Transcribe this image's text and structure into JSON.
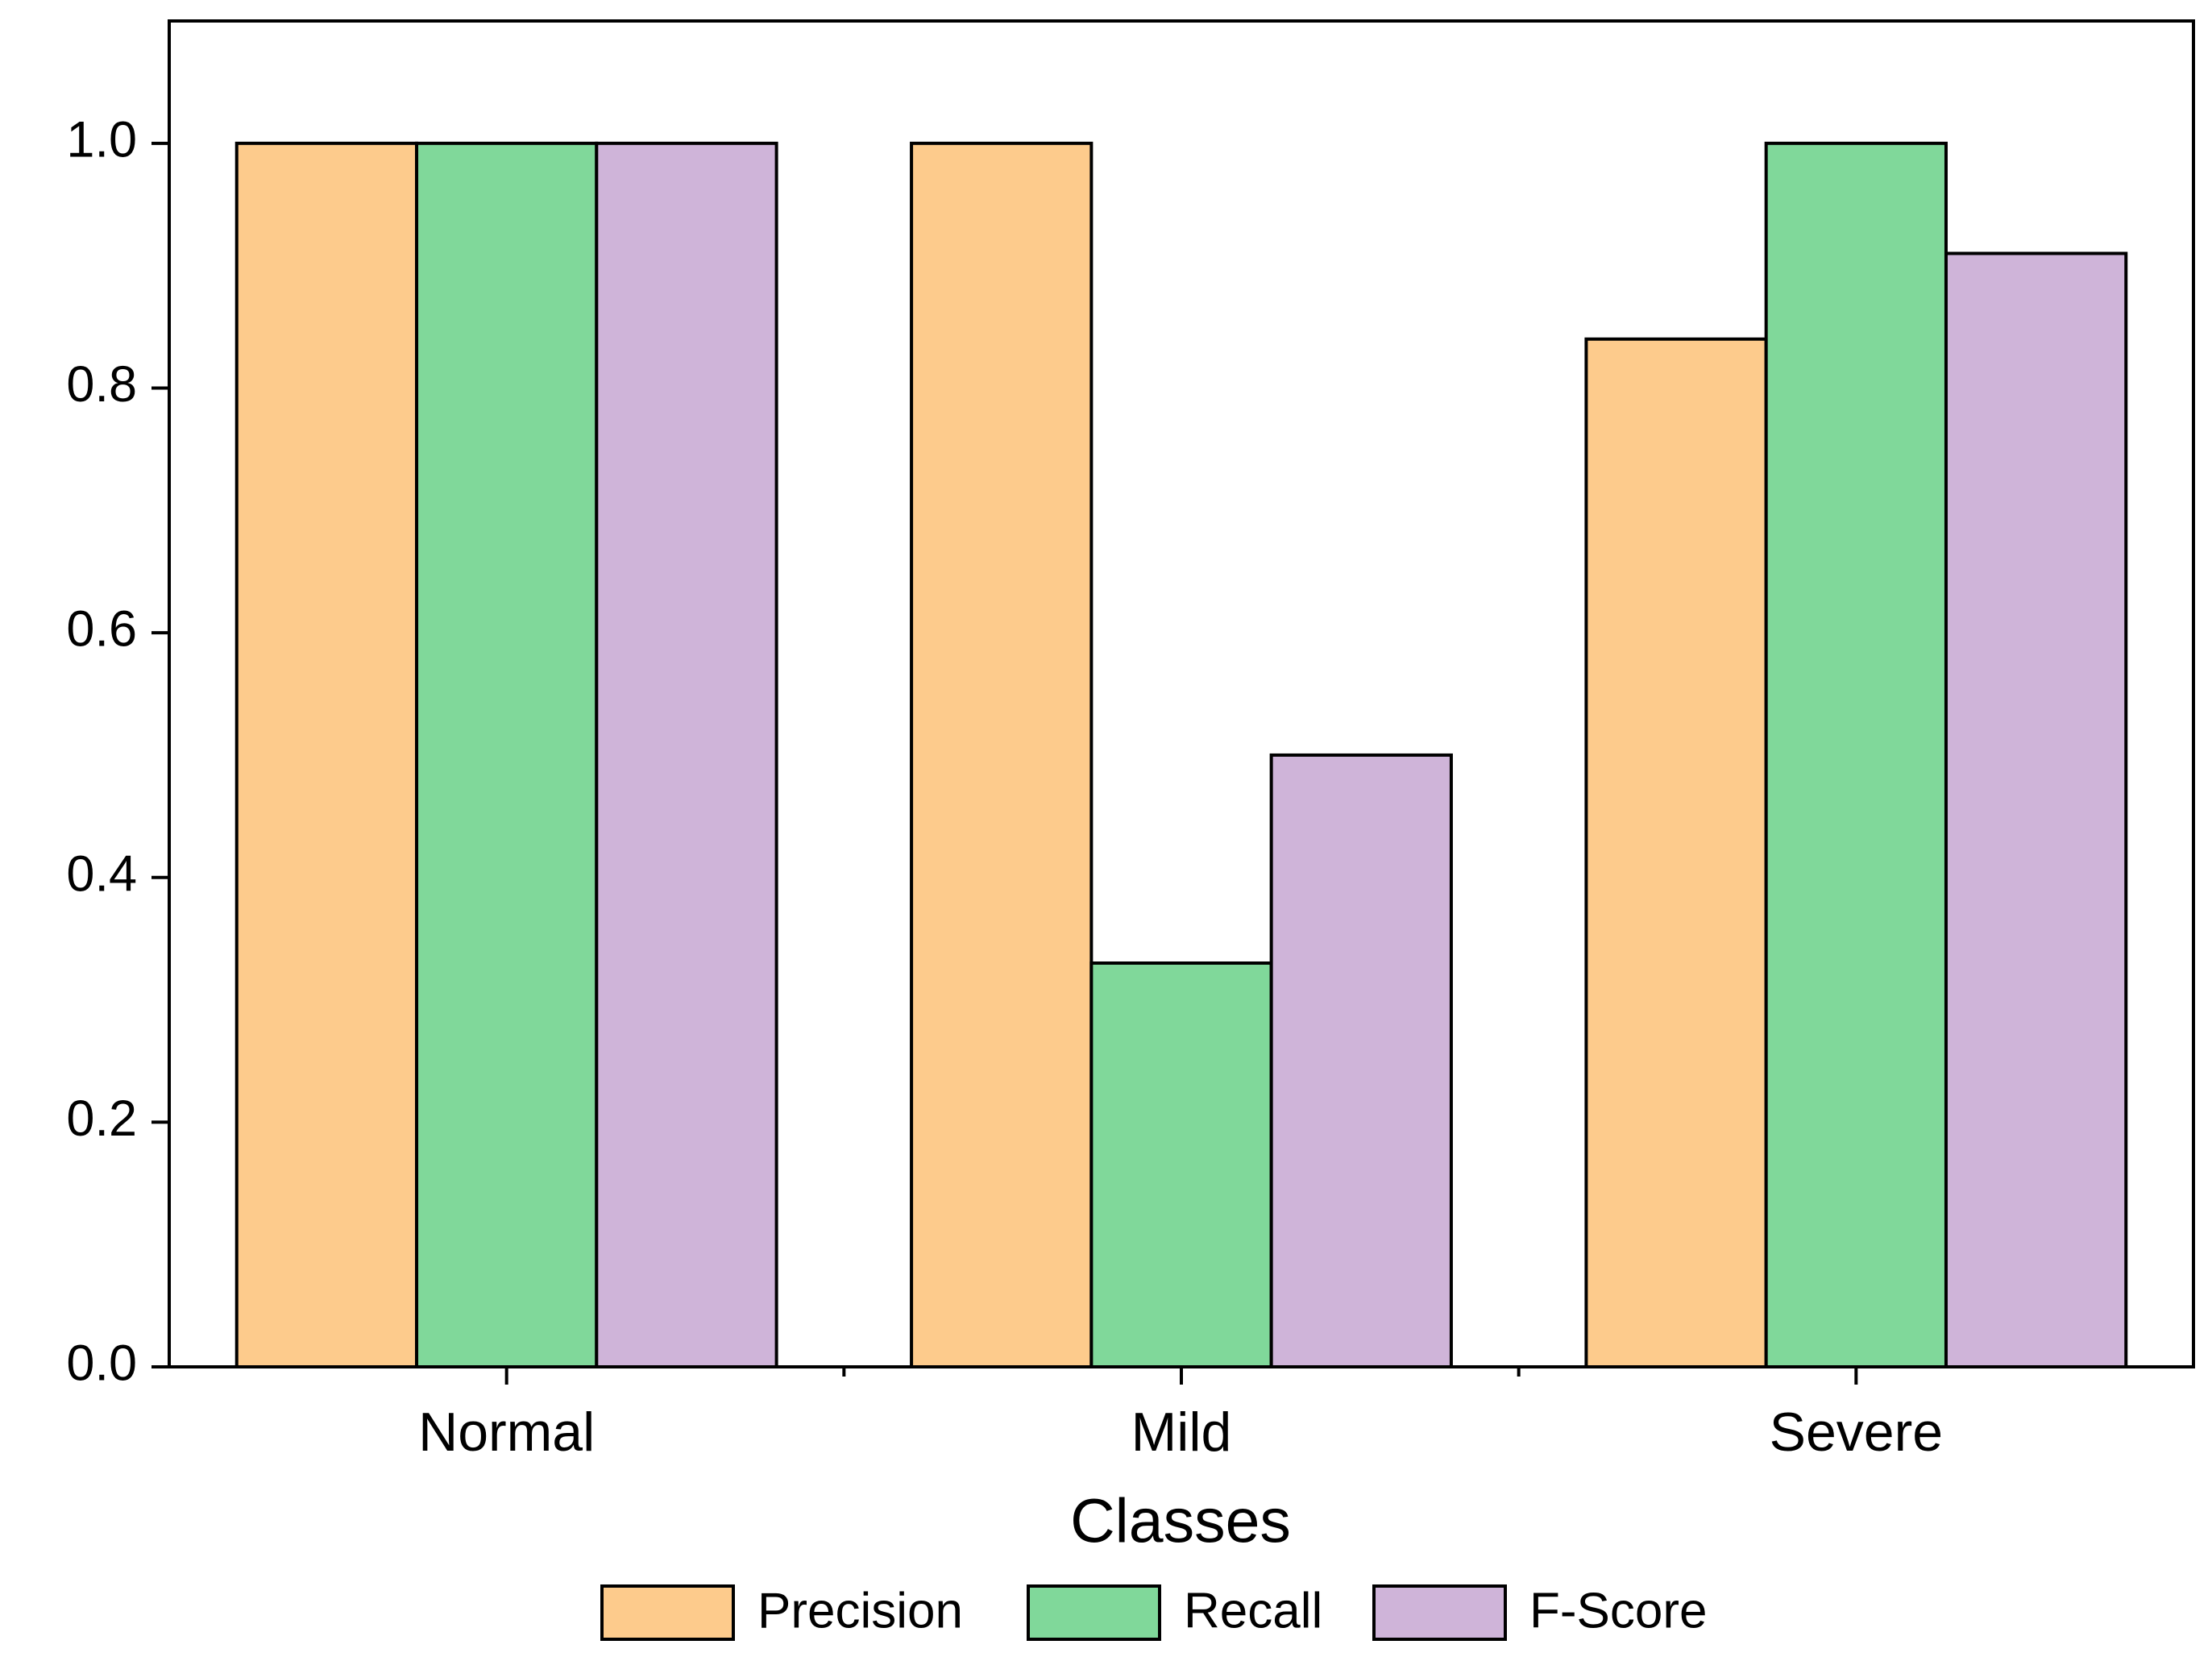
{
  "chart_data": {
    "type": "bar",
    "x_label": "Classes",
    "categories": [
      "Normal",
      "Mild",
      "Severe"
    ],
    "series": [
      {
        "name": "Precision",
        "color": "#fdcb8c",
        "values": [
          1.0,
          1.0,
          0.84
        ]
      },
      {
        "name": "Recall",
        "color": "#80d89a",
        "values": [
          1.0,
          0.33,
          1.0
        ]
      },
      {
        "name": "F-Score",
        "color": "#cfb4d9",
        "values": [
          1.0,
          0.5,
          0.91
        ]
      }
    ],
    "ylim": [
      0,
      1.1
    ],
    "yticks": [
      {
        "value": 0,
        "label": "0.0"
      },
      0.2,
      0.4,
      0.6,
      0.8,
      {
        "value": 1,
        "label": "1.0"
      }
    ],
    "legend": "bottom"
  }
}
